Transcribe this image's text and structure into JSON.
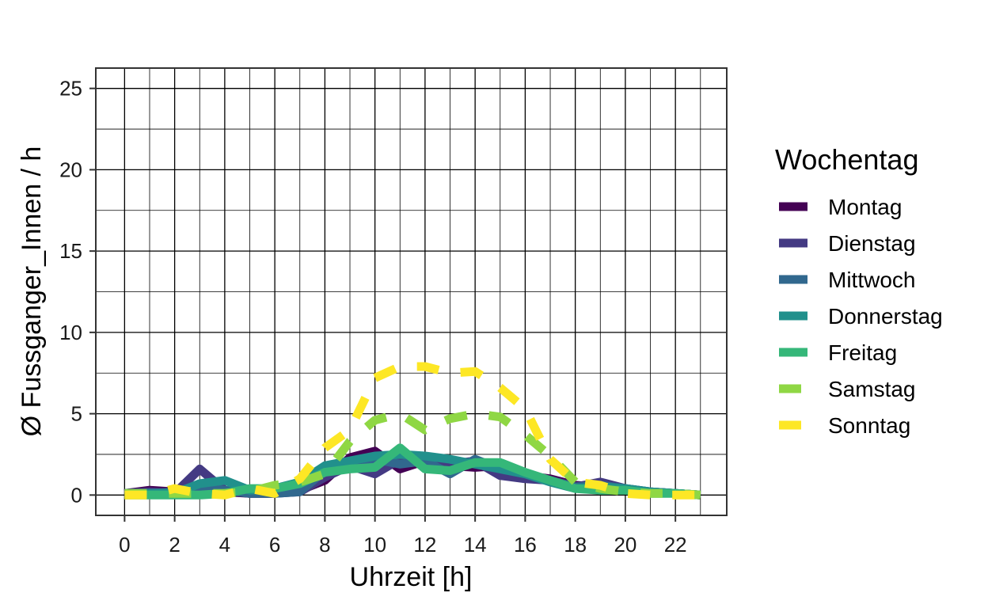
{
  "chart_data": {
    "type": "line",
    "xlabel": "Uhrzeit [h]",
    "ylabel": "Ø Fussganger_Innen / h",
    "xlim": [
      -1.15,
      24.05
    ],
    "ylim": [
      -1.25,
      26.25
    ],
    "x_ticks": [
      0,
      2,
      4,
      6,
      8,
      10,
      12,
      14,
      16,
      18,
      20,
      22
    ],
    "x_tick_labels": [
      "0",
      "2",
      "4",
      "6",
      "8",
      "10",
      "12",
      "14",
      "16",
      "18",
      "20",
      "22"
    ],
    "y_ticks": [
      0,
      5,
      10,
      15,
      20,
      25
    ],
    "y_tick_labels": [
      "0",
      "5",
      "10",
      "15",
      "20",
      "25"
    ],
    "grid": true,
    "legend": {
      "title": "Wochentag",
      "position": "right"
    },
    "x": [
      0,
      1,
      2,
      3,
      4,
      5,
      6,
      7,
      8,
      9,
      10,
      11,
      12,
      13,
      14,
      15,
      16,
      17,
      18,
      19,
      20,
      21,
      22,
      23
    ],
    "series": [
      {
        "name": "Montag",
        "color": "#440154",
        "dash": "solid",
        "values": [
          0.1,
          0.3,
          0.2,
          0.3,
          0.2,
          0.1,
          0.1,
          0.3,
          0.9,
          2.3,
          2.7,
          1.6,
          2.1,
          1.8,
          1.7,
          1.8,
          1.2,
          1.0,
          0.6,
          0.5,
          0.3,
          0.2,
          0.1,
          0.0
        ]
      },
      {
        "name": "Dienstag",
        "color": "#443A83",
        "dash": "solid",
        "values": [
          0.1,
          0.2,
          0.1,
          1.6,
          0.3,
          0.1,
          0.1,
          0.2,
          1.1,
          1.8,
          1.3,
          2.2,
          1.9,
          1.9,
          2.1,
          1.2,
          1.0,
          0.9,
          0.5,
          0.8,
          0.4,
          0.2,
          0.1,
          0.0
        ]
      },
      {
        "name": "Mittwoch",
        "color": "#31688E",
        "dash": "solid",
        "values": [
          0.1,
          0.1,
          0.2,
          0.5,
          0.3,
          0.1,
          0.1,
          0.2,
          1.5,
          1.9,
          2.2,
          1.9,
          2.1,
          1.3,
          2.2,
          1.6,
          1.3,
          0.9,
          0.5,
          0.6,
          0.4,
          0.2,
          0.1,
          0.0
        ]
      },
      {
        "name": "Donnerstag",
        "color": "#21908C",
        "dash": "solid",
        "values": [
          0.1,
          0.1,
          0.1,
          0.7,
          0.9,
          0.3,
          0.4,
          0.8,
          1.8,
          2.1,
          2.4,
          2.5,
          2.4,
          2.2,
          1.9,
          1.6,
          1.3,
          0.8,
          0.4,
          0.5,
          0.4,
          0.2,
          0.1,
          0.0
        ]
      },
      {
        "name": "Freitag",
        "color": "#35B779",
        "dash": "solid",
        "values": [
          0.0,
          0.0,
          0.0,
          0.0,
          0.1,
          0.4,
          0.4,
          0.7,
          1.4,
          1.6,
          1.7,
          2.9,
          1.6,
          1.5,
          2.0,
          2.0,
          1.4,
          0.9,
          0.4,
          0.3,
          0.3,
          0.1,
          0.1,
          0.0
        ]
      },
      {
        "name": "Samstag",
        "color": "#8FD744",
        "dash": "dashed",
        "values": [
          0.1,
          0.1,
          0.1,
          0.1,
          0.1,
          0.2,
          0.6,
          0.8,
          1.3,
          3.3,
          4.6,
          5.0,
          4.0,
          4.7,
          5.0,
          4.8,
          3.7,
          2.4,
          0.8,
          0.4,
          0.2,
          0.1,
          0.1,
          0.0
        ]
      },
      {
        "name": "Sonntag",
        "color": "#FDE725",
        "dash": "dashed",
        "values": [
          0.0,
          0.0,
          0.4,
          0.1,
          0.0,
          0.4,
          0.1,
          1.0,
          2.9,
          4.0,
          7.2,
          7.9,
          7.9,
          7.5,
          7.6,
          6.6,
          5.3,
          2.2,
          0.8,
          0.6,
          0.1,
          0.0,
          0.0,
          0.0
        ]
      }
    ]
  }
}
